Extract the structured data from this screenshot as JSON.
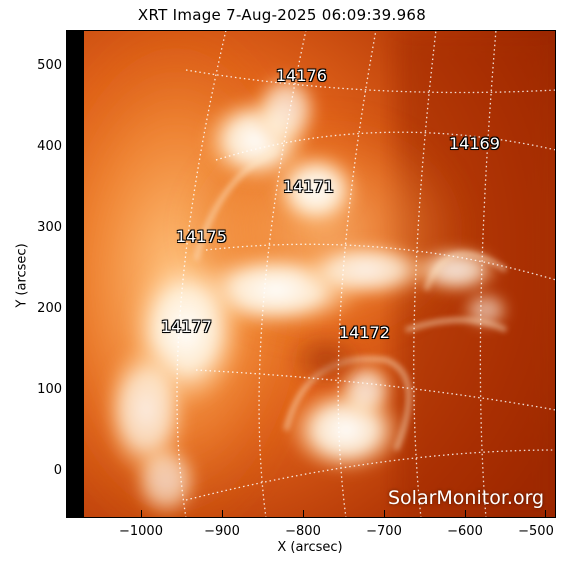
{
  "title": "XRT Image   7-Aug-2025 06:09:39.968",
  "axes": {
    "xlabel": "X (arcsec)",
    "ylabel": "Y (arcsec)",
    "xticks": [
      "−1000",
      "−900",
      "−800",
      "−700",
      "−600",
      "−500"
    ],
    "yticks": [
      "500",
      "400",
      "300",
      "200",
      "100",
      "0"
    ]
  },
  "regions": [
    "14176",
    "14169",
    "14171",
    "14175",
    "14177",
    "14172"
  ],
  "watermark": "SolarMonitor.org",
  "colors": {
    "background": "#a02800",
    "bright": "#ffffff",
    "limb_mask": "#000000"
  }
}
